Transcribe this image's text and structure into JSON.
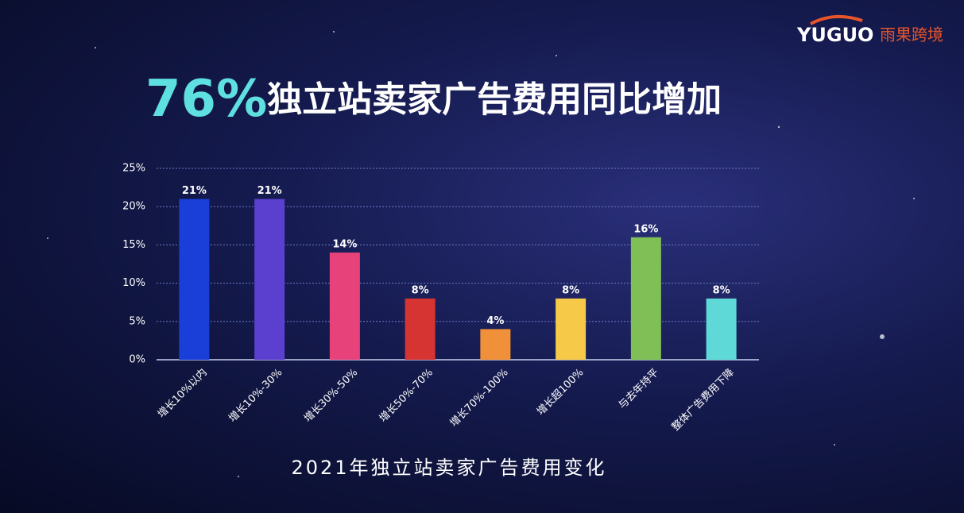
{
  "brand": {
    "name": "YUGUO",
    "name_cn": "雨果跨境"
  },
  "chart_data": {
    "type": "bar",
    "title_highlight": "76%",
    "title": "独立站卖家广告费用同比增加",
    "subtitle": "2021年独立站卖家广告费用变化",
    "categories": [
      "增长10%以内",
      "增长10%-30%",
      "增长30%-50%",
      "增长50%-70%",
      "增长70%-100%",
      "增长超100%",
      "与去年持平",
      "整体广告费用下降"
    ],
    "values": [
      21,
      21,
      14,
      8,
      4,
      8,
      16,
      8
    ],
    "value_labels": [
      "21%",
      "21%",
      "14%",
      "8%",
      "4%",
      "8%",
      "16%",
      "8%"
    ],
    "colors": [
      "#1a3fd8",
      "#5b3fcf",
      "#e8427a",
      "#d63333",
      "#f0913a",
      "#f7c948",
      "#7fbf55",
      "#5fd8d8"
    ],
    "ylim": [
      0,
      25
    ],
    "yticks": [
      {
        "value": 0,
        "label": "0%"
      },
      {
        "value": 5,
        "label": "5%"
      },
      {
        "value": 10,
        "label": "10%"
      },
      {
        "value": 15,
        "label": "15%"
      },
      {
        "value": 20,
        "label": "20%"
      },
      {
        "value": 25,
        "label": "25%"
      }
    ],
    "grid": true
  }
}
